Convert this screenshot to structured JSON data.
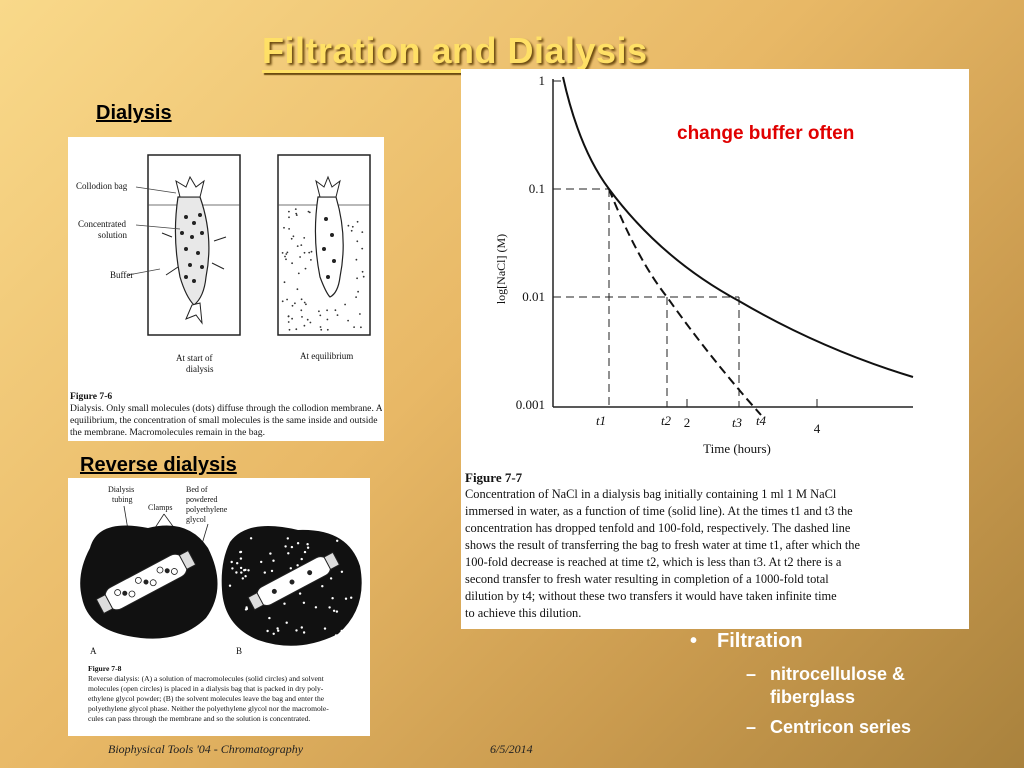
{
  "slide": {
    "title": "Filtration and Dialysis"
  },
  "dialysis": {
    "heading": "Dialysis",
    "labels": {
      "bag": "Collodion bag",
      "concentrated": "Concentrated",
      "solution": "solution",
      "buffer": "Buffer",
      "start_line1": "At start of",
      "start_line2": "dialysis",
      "equilibrium": "At equilibrium"
    },
    "figure_label": "Figure 7-6",
    "caption_lines": [
      "Dialysis. Only small molecules (dots) diffuse through the collodion membrane. At",
      "equilibrium, the concentration of small molecules is the same inside and outside",
      "the membrane. Macromolecules remain in the bag."
    ]
  },
  "reverse": {
    "heading": "Reverse dialysis",
    "labels": {
      "tubing1": "Dialysis",
      "tubing2": "tubing",
      "clamps": "Clamps",
      "bed1": "Bed of",
      "bed2": "powdered",
      "bed3": "polyethylene",
      "bed4": "glycol",
      "a": "A",
      "b": "B"
    },
    "figure_label": "Figure 7-8",
    "caption_lines": [
      "Reverse dialysis: (A) a solution of macromolecules (solid circles) and solvent",
      "molecules (open circles) is placed in a dialysis bag that is packed in dry poly-",
      "ethylene glycol powder; (B) the solvent molecules leave the bag and enter the",
      "polyethylene glycol phase. Neither the polyethylene glycol nor the macromole-",
      "cules can pass through the membrane and so the solution is concentrated."
    ]
  },
  "graph": {
    "annotation": "change buffer often",
    "ylabel": "log[NaCl] (M)",
    "xlabel": "Time (hours)",
    "yticks": [
      "1",
      "0.1",
      "0.01",
      "0.001"
    ],
    "xticks": [
      "t1",
      "t2",
      "2",
      "t3",
      "t4",
      "4"
    ],
    "figure_label": "Figure 7-7",
    "caption_lines": [
      "Concentration of NaCl in a dialysis bag initially containing 1 ml 1 M NaCl",
      "immersed in water, as a function of time (solid line). At the times t1 and t3 the",
      "concentration has dropped tenfold and 100-fold, respectively. The dashed line",
      "shows the result of transferring the bag to fresh water at time t1, after which the",
      "100-fold decrease is reached at time t2, which is less than t3. At t2 there is a",
      "second transfer to fresh water resulting in completion of a 1000-fold total",
      "dilution by t4; without these two transfers it would have taken infinite time",
      "to achieve this dilution."
    ]
  },
  "bullets": {
    "main": "Filtration",
    "subs": [
      "nitrocellulose & fiberglass",
      "Centricon series"
    ]
  },
  "footer": {
    "left": "Biophysical Tools '04 - Chromatography",
    "date": "6/5/2014"
  }
}
